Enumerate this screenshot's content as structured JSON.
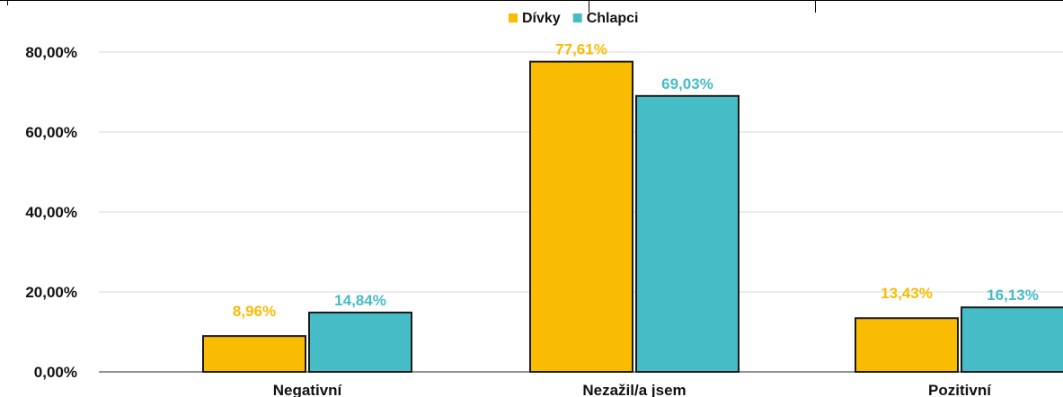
{
  "chart_data": {
    "type": "bar",
    "title": "",
    "xlabel": "",
    "ylabel": "",
    "categories": [
      "Negativní",
      "Nezažil/a jsem",
      "Pozitivní"
    ],
    "series": [
      {
        "name": "Dívky",
        "values": [
          8.96,
          77.61,
          13.43
        ],
        "labels": [
          "8,96%",
          "77,61%",
          "13,43%"
        ],
        "color": "#F9BC02"
      },
      {
        "name": "Chlapci",
        "values": [
          14.84,
          69.03,
          16.13
        ],
        "labels": [
          "14,84%",
          "69,03%",
          "16,13%"
        ],
        "color": "#46BCC6"
      }
    ],
    "ylim": [
      0,
      80
    ],
    "yticks": [
      0,
      20,
      40,
      60,
      80
    ],
    "ytick_labels": [
      "0,00%",
      "20,00%",
      "40,00%",
      "60,00%",
      "80,00%"
    ],
    "grid": true,
    "legend_position": "top-center"
  }
}
